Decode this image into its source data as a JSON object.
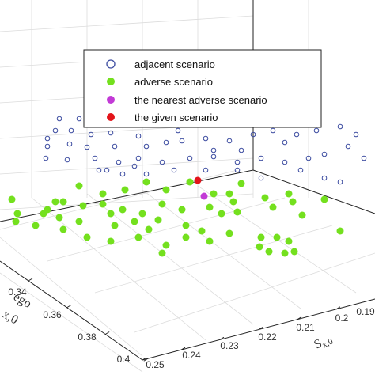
{
  "chart_data": {
    "type": "scatter",
    "xlabel": "S",
    "xlabel_sub": "x,0",
    "ylabel_main": "ego",
    "ylabel_sub": "x,0",
    "x_ticks": [
      "0.25",
      "0.24",
      "0.23",
      "0.22",
      "0.21",
      "0.2",
      "0.19"
    ],
    "y_ticks": [
      "0.34",
      "0.36",
      "0.38",
      "0.4"
    ],
    "legend": {
      "placement": "top-right",
      "entries": [
        {
          "key": "adjacent",
          "label": "adjacent scenario",
          "marker": "open-circle",
          "color": "#3b4ba0"
        },
        {
          "key": "adverse",
          "label": "adverse scenario",
          "marker": "filled-circle",
          "color": "#74e01e"
        },
        {
          "key": "nearest",
          "label": "the nearest adverse scenario",
          "marker": "filled-circle",
          "color": "#c23ad6"
        },
        {
          "key": "given",
          "label": "the given scenario",
          "marker": "filled-circle",
          "color": "#e3141a"
        }
      ]
    },
    "series": {
      "adjacent": [
        [
          75,
          150
        ],
        [
          100,
          150
        ],
        [
          120,
          155
        ],
        [
          160,
          155
        ],
        [
          180,
          150
        ],
        [
          70,
          165
        ],
        [
          90,
          165
        ],
        [
          115,
          170
        ],
        [
          140,
          168
        ],
        [
          175,
          172
        ],
        [
          60,
          185
        ],
        [
          88,
          182
        ],
        [
          110,
          186
        ],
        [
          145,
          185
        ],
        [
          185,
          185
        ],
        [
          210,
          180
        ],
        [
          230,
          178
        ],
        [
          260,
          175
        ],
        [
          290,
          178
        ],
        [
          320,
          170
        ],
        [
          345,
          165
        ],
        [
          375,
          170
        ],
        [
          400,
          165
        ],
        [
          430,
          160
        ],
        [
          450,
          170
        ],
        [
          58,
          200
        ],
        [
          85,
          202
        ],
        [
          120,
          200
        ],
        [
          150,
          205
        ],
        [
          175,
          200
        ],
        [
          205,
          205
        ],
        [
          240,
          200
        ],
        [
          270,
          198
        ],
        [
          300,
          205
        ],
        [
          330,
          200
        ],
        [
          360,
          205
        ],
        [
          390,
          200
        ],
        [
          410,
          195
        ],
        [
          440,
          185
        ],
        [
          460,
          200
        ],
        [
          125,
          215
        ],
        [
          155,
          220
        ],
        [
          185,
          220
        ],
        [
          220,
          215
        ],
        [
          260,
          215
        ],
        [
          300,
          215
        ],
        [
          330,
          225
        ],
        [
          410,
          225
        ],
        [
          430,
          230
        ],
        [
          380,
          215
        ],
        [
          360,
          180
        ],
        [
          305,
          190
        ],
        [
          60,
          175
        ],
        [
          225,
          165
        ],
        [
          270,
          190
        ],
        [
          170,
          210
        ],
        [
          135,
          215
        ]
      ],
      "adverse": [
        [
          15,
          252
        ],
        [
          70,
          255
        ],
        [
          100,
          235
        ],
        [
          130,
          245
        ],
        [
          158,
          240
        ],
        [
          185,
          230
        ],
        [
          210,
          240
        ],
        [
          240,
          230
        ],
        [
          270,
          245
        ],
        [
          290,
          245
        ],
        [
          305,
          232
        ],
        [
          335,
          250
        ],
        [
          365,
          245
        ],
        [
          22,
          270
        ],
        [
          55,
          270
        ],
        [
          80,
          255
        ],
        [
          105,
          260
        ],
        [
          130,
          258
        ],
        [
          155,
          265
        ],
        [
          180,
          270
        ],
        [
          205,
          258
        ],
        [
          230,
          265
        ],
        [
          265,
          262
        ],
        [
          295,
          255
        ],
        [
          345,
          262
        ],
        [
          370,
          255
        ],
        [
          20,
          280
        ],
        [
          45,
          285
        ],
        [
          75,
          275
        ],
        [
          100,
          280
        ],
        [
          140,
          270
        ],
        [
          170,
          280
        ],
        [
          200,
          278
        ],
        [
          235,
          285
        ],
        [
          280,
          270
        ],
        [
          300,
          268
        ],
        [
          382,
          272
        ],
        [
          410,
          252
        ],
        [
          145,
          285
        ],
        [
          110,
          300
        ],
        [
          175,
          300
        ],
        [
          140,
          305
        ],
        [
          210,
          310
        ],
        [
          235,
          300
        ],
        [
          265,
          305
        ],
        [
          290,
          295
        ],
        [
          330,
          300
        ],
        [
          350,
          300
        ],
        [
          365,
          305
        ],
        [
          328,
          312
        ],
        [
          340,
          318
        ],
        [
          360,
          320
        ],
        [
          372,
          318
        ],
        [
          430,
          292
        ],
        [
          205,
          320
        ],
        [
          188,
          290
        ],
        [
          255,
          292
        ],
        [
          80,
          290
        ],
        [
          60,
          265
        ]
      ],
      "nearest": [
        [
          258,
          248
        ]
      ],
      "given": [
        [
          250,
          228
        ]
      ]
    }
  }
}
